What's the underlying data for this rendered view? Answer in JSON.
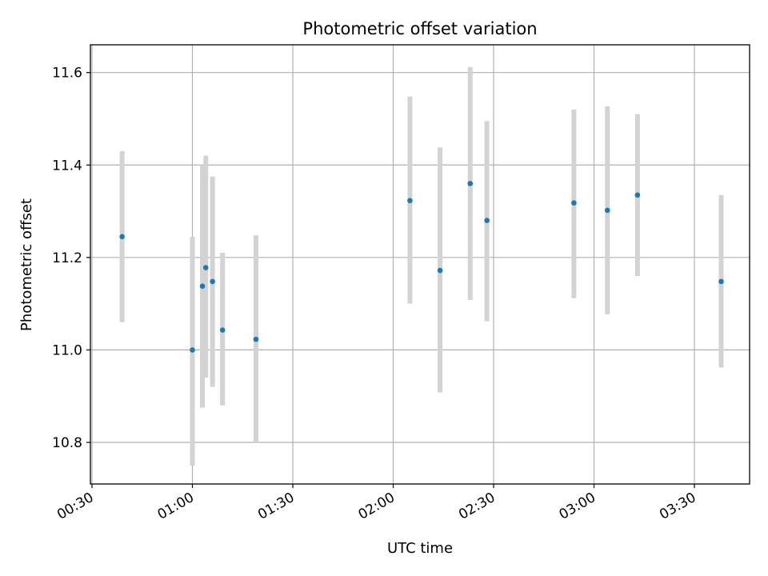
{
  "chart_data": {
    "type": "scatter",
    "title": "Photometric offset variation",
    "xlabel": "UTC time",
    "ylabel": "Photometric offset",
    "x_tick_labels": [
      "00:30",
      "01:00",
      "01:30",
      "02:00",
      "02:30",
      "03:00",
      "03:30"
    ],
    "y_tick_labels": [
      "10.8",
      "11.0",
      "11.2",
      "11.4",
      "11.6"
    ],
    "x_ticks": [
      "00:30",
      "01:00",
      "01:30",
      "02:00",
      "02:30",
      "03:00",
      "03:30"
    ],
    "y_ticks": [
      10.8,
      11.0,
      11.2,
      11.4,
      11.6
    ],
    "xlim": [
      "00:30",
      "03:45"
    ],
    "ylim": [
      10.71,
      11.66
    ],
    "grid": true,
    "marker_color": "#1f77b4",
    "errorbar_color": "#d3d3d3",
    "points": [
      {
        "x": "00:39",
        "y": 11.245,
        "ylow": 11.06,
        "yhigh": 11.43
      },
      {
        "x": "01:00",
        "y": 11.0,
        "ylow": 10.75,
        "yhigh": 11.245
      },
      {
        "x": "01:03",
        "y": 11.138,
        "ylow": 10.875,
        "yhigh": 11.4
      },
      {
        "x": "01:04",
        "y": 11.178,
        "ylow": 10.94,
        "yhigh": 11.42
      },
      {
        "x": "01:06",
        "y": 11.148,
        "ylow": 10.92,
        "yhigh": 11.375
      },
      {
        "x": "01:09",
        "y": 11.043,
        "ylow": 10.88,
        "yhigh": 11.21
      },
      {
        "x": "01:19",
        "y": 11.023,
        "ylow": 10.8,
        "yhigh": 11.248
      },
      {
        "x": "02:05",
        "y": 11.323,
        "ylow": 11.1,
        "yhigh": 11.548
      },
      {
        "x": "02:14",
        "y": 11.172,
        "ylow": 10.908,
        "yhigh": 11.438
      },
      {
        "x": "02:23",
        "y": 11.36,
        "ylow": 11.108,
        "yhigh": 11.612
      },
      {
        "x": "02:28",
        "y": 11.28,
        "ylow": 11.062,
        "yhigh": 11.495
      },
      {
        "x": "02:54",
        "y": 11.318,
        "ylow": 11.112,
        "yhigh": 11.52
      },
      {
        "x": "03:04",
        "y": 11.302,
        "ylow": 11.077,
        "yhigh": 11.527
      },
      {
        "x": "03:13",
        "y": 11.335,
        "ylow": 11.16,
        "yhigh": 11.51
      },
      {
        "x": "03:38",
        "y": 11.148,
        "ylow": 10.962,
        "yhigh": 11.335
      }
    ]
  }
}
